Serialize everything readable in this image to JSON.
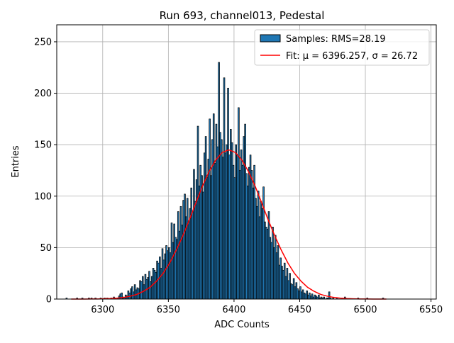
{
  "chart_data": {
    "type": "histogram",
    "title": "Run 693, channel013, Pedestal",
    "xlabel": "ADC Counts",
    "ylabel": "Entries",
    "name": "Samples: RMS=28.19",
    "color": "#1f77b4",
    "edgecolor": "#000000",
    "bins": [
      6272,
      6273,
      6274,
      6275,
      6276,
      6277,
      6278,
      6279,
      6280,
      6281,
      6282,
      6283,
      6284,
      6285,
      6286,
      6287,
      6288,
      6289,
      6290,
      6291,
      6292,
      6293,
      6294,
      6295,
      6296,
      6297,
      6298,
      6299,
      6300,
      6301,
      6302,
      6303,
      6304,
      6305,
      6306,
      6307,
      6308,
      6309,
      6310,
      6311,
      6312,
      6313,
      6314,
      6315,
      6316,
      6317,
      6318,
      6319,
      6320,
      6321,
      6322,
      6323,
      6324,
      6325,
      6326,
      6327,
      6328,
      6329,
      6330,
      6331,
      6332,
      6333,
      6334,
      6335,
      6336,
      6337,
      6338,
      6339,
      6340,
      6341,
      6342,
      6343,
      6344,
      6345,
      6346,
      6347,
      6348,
      6349,
      6350,
      6351,
      6352,
      6353,
      6354,
      6355,
      6356,
      6357,
      6358,
      6359,
      6360,
      6361,
      6362,
      6363,
      6364,
      6365,
      6366,
      6367,
      6368,
      6369,
      6370,
      6371,
      6372,
      6373,
      6374,
      6375,
      6376,
      6377,
      6378,
      6379,
      6380,
      6381,
      6382,
      6383,
      6384,
      6385,
      6386,
      6387,
      6388,
      6389,
      6390,
      6391,
      6392,
      6393,
      6394,
      6395,
      6396,
      6397,
      6398,
      6399,
      6400,
      6401,
      6402,
      6403,
      6404,
      6405,
      6406,
      6407,
      6408,
      6409,
      6410,
      6411,
      6412,
      6413,
      6414,
      6415,
      6416,
      6417,
      6418,
      6419,
      6420,
      6421,
      6422,
      6423,
      6424,
      6425,
      6426,
      6427,
      6428,
      6429,
      6430,
      6431,
      6432,
      6433,
      6434,
      6435,
      6436,
      6437,
      6438,
      6439,
      6440,
      6441,
      6442,
      6443,
      6444,
      6445,
      6446,
      6447,
      6448,
      6449,
      6450,
      6451,
      6452,
      6453,
      6454,
      6455,
      6456,
      6457,
      6458,
      6459,
      6460,
      6461,
      6462,
      6463,
      6464,
      6465,
      6466,
      6467,
      6468,
      6469,
      6470,
      6471,
      6472,
      6473,
      6474,
      6475,
      6476,
      6477,
      6478,
      6479,
      6480,
      6481,
      6482,
      6483,
      6484,
      6485,
      6486,
      6487,
      6488,
      6489,
      6490,
      6491,
      6492,
      6493,
      6494,
      6495,
      6496,
      6497,
      6498,
      6499,
      6500,
      6501,
      6502,
      6503,
      6504,
      6505,
      6506,
      6507,
      6508,
      6509,
      6510,
      6511,
      6512,
      6513,
      6514,
      6515
    ],
    "values": [
      1,
      0,
      0,
      0,
      0,
      0,
      0,
      0,
      1,
      0,
      0,
      0,
      1,
      0,
      0,
      0,
      0,
      1,
      0,
      1,
      0,
      0,
      1,
      0,
      0,
      0,
      1,
      0,
      0,
      1,
      0,
      1,
      0,
      0,
      1,
      0,
      2,
      1,
      0,
      1,
      3,
      5,
      6,
      2,
      1,
      4,
      3,
      8,
      6,
      10,
      12,
      7,
      14,
      9,
      11,
      10,
      18,
      17,
      22,
      14,
      24,
      19,
      21,
      27,
      17,
      22,
      30,
      28,
      26,
      37,
      35,
      41,
      30,
      49,
      38,
      44,
      52,
      47,
      50,
      45,
      74,
      55,
      73,
      60,
      58,
      85,
      66,
      90,
      72,
      96,
      102,
      80,
      98,
      75,
      88,
      108,
      85,
      126,
      95,
      116,
      168,
      110,
      130,
      120,
      104,
      142,
      158,
      118,
      136,
      175,
      120,
      155,
      180,
      132,
      170,
      148,
      230,
      162,
      155,
      138,
      215,
      142,
      150,
      205,
      140,
      165,
      152,
      130,
      118,
      150,
      140,
      186,
      125,
      145,
      130,
      158,
      170,
      122,
      110,
      128,
      140,
      125,
      108,
      130,
      98,
      90,
      105,
      80,
      95,
      88,
      109,
      75,
      70,
      68,
      85,
      60,
      55,
      70,
      50,
      62,
      45,
      52,
      33,
      40,
      32,
      28,
      35,
      22,
      30,
      18,
      25,
      15,
      14,
      20,
      12,
      16,
      10,
      8,
      12,
      7,
      9,
      6,
      5,
      8,
      4,
      6,
      3,
      5,
      2,
      4,
      3,
      2,
      4,
      1,
      2,
      1,
      2,
      0,
      1,
      1,
      7,
      1,
      0,
      1,
      0,
      0,
      1,
      0,
      0,
      0,
      0,
      0,
      2,
      0,
      0,
      0,
      0,
      0,
      0,
      0,
      0,
      0,
      1,
      0,
      0,
      0,
      0,
      0,
      0,
      1,
      0,
      0,
      0,
      0,
      0,
      0,
      0,
      0,
      0,
      0,
      0,
      1,
      0
    ],
    "fit": {
      "name": "Fit: μ = 6396.257, σ = 26.72",
      "color": "#ff0000",
      "x": [
        6276,
        6281,
        6286,
        6291,
        6296,
        6301,
        6306,
        6311,
        6316,
        6321,
        6326,
        6331,
        6336,
        6341,
        6346,
        6351,
        6356,
        6361,
        6366,
        6371,
        6376,
        6381,
        6386,
        6391,
        6396,
        6401,
        6406,
        6411,
        6416,
        6421,
        6426,
        6431,
        6436,
        6441,
        6446,
        6451,
        6456,
        6461,
        6466,
        6471,
        6476,
        6481,
        6486,
        6491,
        6496,
        6501,
        6506,
        6511,
        6516
      ],
      "values": [
        0,
        0.01,
        0.03,
        0.06,
        0.12,
        0.25,
        0.5,
        0.9,
        1.6,
        2.8,
        4.5,
        7.5,
        11.4,
        17.4,
        25,
        35.1,
        47.5,
        61.5,
        77,
        93.6,
        110,
        123.9,
        135,
        142.5,
        145,
        142.5,
        135,
        123.9,
        110,
        93.6,
        77,
        61.5,
        47.5,
        35.1,
        25,
        17.4,
        11.4,
        7.5,
        4.5,
        2.8,
        1.6,
        0.9,
        0.5,
        0.25,
        0.12,
        0.06,
        0.03,
        0.01,
        0
      ]
    },
    "xlim": [
      6265,
      6554
    ],
    "ylim": [
      0,
      266.5
    ],
    "xticks": [
      6300,
      6350,
      6400,
      6450,
      6500,
      6550
    ],
    "yticks": [
      0,
      50,
      100,
      150,
      200,
      250
    ],
    "grid": true,
    "legend": "upper right"
  }
}
